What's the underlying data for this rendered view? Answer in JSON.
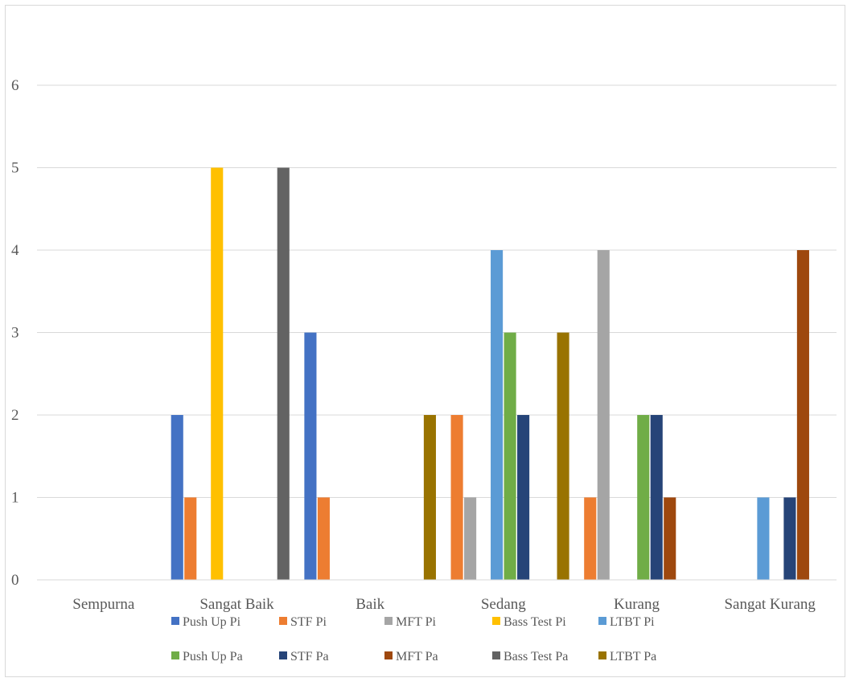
{
  "chart_data": {
    "type": "bar",
    "title": "",
    "xlabel": "",
    "ylabel": "",
    "ylim": [
      0,
      6
    ],
    "yticks": [
      0,
      1,
      2,
      3,
      4,
      5,
      6
    ],
    "grid": true,
    "legend": "bottom",
    "categories": [
      "Sempurna",
      "Sangat Baik",
      "Baik",
      "Sedang",
      "Kurang",
      "Sangat Kurang"
    ],
    "series": [
      {
        "name": "Push Up Pi",
        "color": "#4472C4",
        "values": [
          0,
          2,
          3,
          0,
          0,
          0
        ]
      },
      {
        "name": "STF Pi",
        "color": "#ED7D31",
        "values": [
          0,
          1,
          1,
          2,
          1,
          0
        ]
      },
      {
        "name": "MFT Pi",
        "color": "#A5A5A5",
        "values": [
          0,
          0,
          0,
          1,
          4,
          0
        ]
      },
      {
        "name": "Bass Test Pi",
        "color": "#FFC000",
        "values": [
          0,
          5,
          0,
          0,
          0,
          0
        ]
      },
      {
        "name": "LTBT Pi",
        "color": "#5B9BD5",
        "values": [
          0,
          0,
          0,
          4,
          0,
          1
        ]
      },
      {
        "name": "Push Up Pa",
        "color": "#70AD47",
        "values": [
          0,
          0,
          0,
          3,
          2,
          0
        ]
      },
      {
        "name": "STF Pa",
        "color": "#264478",
        "values": [
          0,
          0,
          0,
          2,
          2,
          1
        ]
      },
      {
        "name": "MFT Pa",
        "color": "#9E480E",
        "values": [
          0,
          0,
          0,
          0,
          1,
          4
        ]
      },
      {
        "name": "Bass Test Pa",
        "color": "#636363",
        "values": [
          0,
          5,
          0,
          0,
          0,
          0
        ]
      },
      {
        "name": "LTBT Pa",
        "color": "#997300",
        "values": [
          0,
          0,
          2,
          3,
          0,
          0
        ]
      }
    ]
  }
}
